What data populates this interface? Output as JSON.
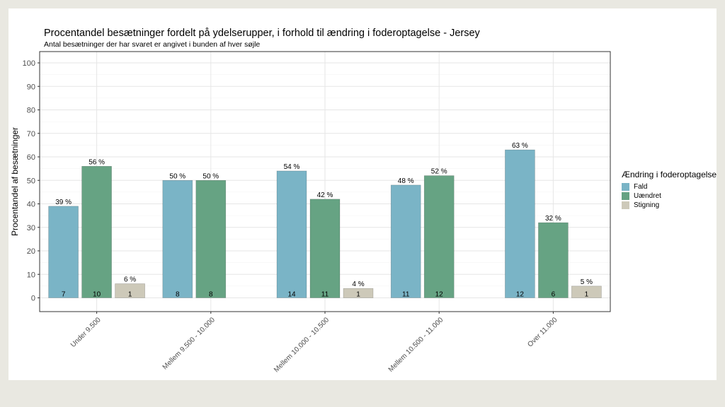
{
  "chart_data": {
    "type": "bar",
    "title": "Procentandel besætninger fordelt på ydelserupper, i forhold til ændring i foderoptagelse - Jersey",
    "subtitle": "Antal besætninger der har svaret er angivet i bunden af hver søjle",
    "xlabel": "",
    "ylabel": "Procentandel af besætninger",
    "ylim": [
      0,
      100
    ],
    "yticks": [
      0,
      10,
      20,
      30,
      40,
      50,
      60,
      70,
      80,
      90,
      100
    ],
    "grid": true,
    "legend_title": "Ændring i foderoptagelse",
    "legend_position": "right",
    "categories": [
      "Under 9.500",
      "Mellem 9.500 - 10.000",
      "Mellem 10.000 - 10.500",
      "Mellem 10.500 - 11.000",
      "Over 11.000"
    ],
    "series": [
      {
        "name": "Fald",
        "color": "#7ab4c6",
        "values": [
          39,
          50,
          54,
          48,
          63
        ],
        "value_labels": [
          "39 %",
          "50 %",
          "54 %",
          "48 %",
          "63 %"
        ],
        "counts": [
          "7",
          "8",
          "14",
          "11",
          "12"
        ]
      },
      {
        "name": "Uændret",
        "color": "#66a383",
        "values": [
          56,
          50,
          42,
          52,
          32
        ],
        "value_labels": [
          "56 %",
          "50 %",
          "42 %",
          "52 %",
          "32 %"
        ],
        "counts": [
          "10",
          "8",
          "11",
          "12",
          "6"
        ]
      },
      {
        "name": "Stigning",
        "color": "#cdc9b9",
        "values": [
          6,
          null,
          4,
          null,
          5
        ],
        "value_labels": [
          "6 %",
          null,
          "4 %",
          null,
          "5 %"
        ],
        "counts": [
          "1",
          null,
          "1",
          null,
          "1"
        ]
      }
    ]
  }
}
